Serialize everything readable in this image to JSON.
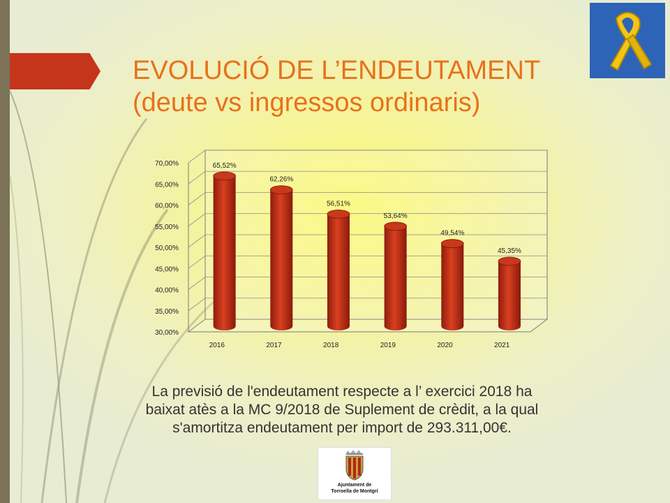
{
  "slide": {
    "title_line1": "EVOLUCIÓ DE L’ENDEUTAMENT",
    "title_line2": "(deute vs ingressos ordinaris)",
    "caption_line1": "La previsió de l'endeutament respecte a l’ exercici 2018 ha",
    "caption_line2": "baixat atès a la MC 9/2018 de Suplement de crèdit, a la qual",
    "caption_line3": "s'amortitza endeutament per import de 293.311,00€.",
    "logo_line1": "Ajuntament de",
    "logo_line2": "Torroella de Montgrí",
    "icons": {
      "ribbon": "yellow-ribbon-icon",
      "logo": "coat-of-arms-icon"
    },
    "colors": {
      "title": "#e8711c",
      "banner": "#c5351b",
      "ribbon_bg": "#2e64b7",
      "bar": "#c0301a"
    }
  },
  "chart_data": {
    "type": "bar",
    "categories": [
      "2016",
      "2017",
      "2018",
      "2019",
      "2020",
      "2021"
    ],
    "values": [
      65.52,
      62.26,
      56.51,
      53.64,
      49.54,
      45.35
    ],
    "value_labels": [
      "65,52%",
      "62,26%",
      "56,51%",
      "53,64%",
      "49,54%",
      "45,35%"
    ],
    "ylim": [
      30,
      70
    ],
    "yticks": [
      "30,00%",
      "35,00%",
      "40,00%",
      "45,00%",
      "50,00%",
      "55,00%",
      "60,00%",
      "65,00%",
      "70,00%"
    ],
    "grid": true,
    "title": "",
    "xlabel": "",
    "ylabel": ""
  }
}
